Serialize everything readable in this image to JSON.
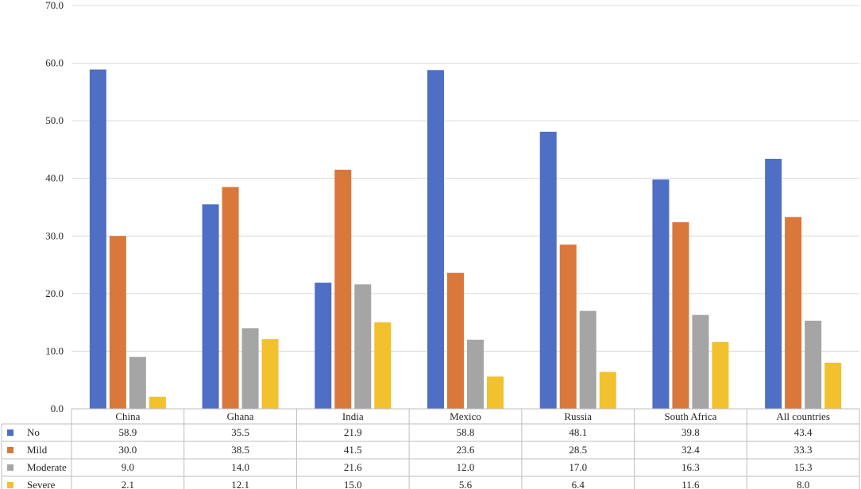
{
  "chart_data": {
    "type": "bar",
    "title": "",
    "xlabel": "",
    "ylabel": "",
    "ylim": [
      0,
      70
    ],
    "yticks": [
      "0.0",
      "10.0",
      "20.0",
      "30.0",
      "40.0",
      "50.0",
      "60.0",
      "70.0"
    ],
    "grid": true,
    "legend": "data-table",
    "categories": [
      "China",
      "Ghana",
      "India",
      "Mexico",
      "Russia",
      "South Africa",
      "All countries"
    ],
    "series": [
      {
        "name": "No",
        "color": "#4F6FC4",
        "values": [
          58.9,
          35.5,
          21.9,
          58.8,
          48.1,
          39.8,
          43.4
        ],
        "labels": [
          "58.9",
          "35.5",
          "21.9",
          "58.8",
          "48.1",
          "39.8",
          "43.4"
        ]
      },
      {
        "name": "Mild",
        "color": "#D9783A",
        "values": [
          30.0,
          38.5,
          41.5,
          23.6,
          28.5,
          32.4,
          33.3
        ],
        "labels": [
          "30.0",
          "38.5",
          "41.5",
          "23.6",
          "28.5",
          "32.4",
          "33.3"
        ]
      },
      {
        "name": "Moderate",
        "color": "#A5A5A5",
        "values": [
          9.0,
          14.0,
          21.6,
          12.0,
          17.0,
          16.3,
          15.3
        ],
        "labels": [
          "9.0",
          "14.0",
          "21.6",
          "12.0",
          "17.0",
          "16.3",
          "15.3"
        ]
      },
      {
        "name": "Severe",
        "color": "#F2C12E",
        "values": [
          2.1,
          12.1,
          15.0,
          5.6,
          6.4,
          11.6,
          8.0
        ],
        "labels": [
          "2.1",
          "12.1",
          "15.0",
          "5.6",
          "6.4",
          "11.6",
          "8.0"
        ]
      }
    ]
  }
}
